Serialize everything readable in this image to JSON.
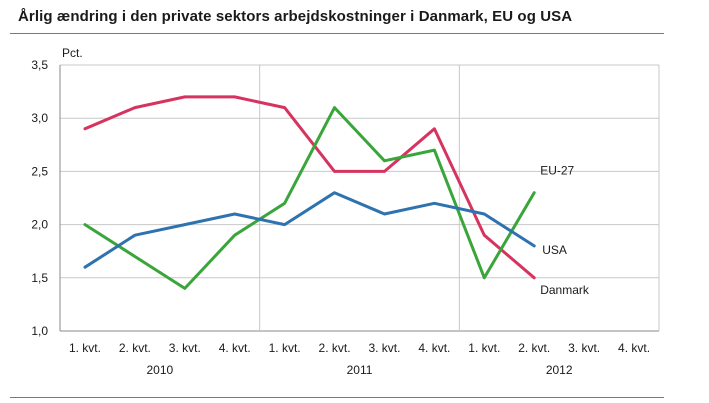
{
  "title": "Årlig ændring i den private sektors arbejdskostninger i Danmark, EU og USA",
  "colors": {
    "rule": "#3aa53a",
    "grid": "#c8c8c8",
    "axis": "#8a8a8a"
  },
  "chart_data": {
    "type": "line",
    "ylabel": "Pct.",
    "ylim": [
      1.0,
      3.5
    ],
    "yticks": [
      1.0,
      1.5,
      2.0,
      2.5,
      3.0,
      3.5
    ],
    "ytick_labels": [
      "1,0",
      "1,5",
      "2,0",
      "2,5",
      "3,0",
      "3,5"
    ],
    "categories": [
      "1. kvt.",
      "2. kvt.",
      "3. kvt.",
      "4. kvt.",
      "1. kvt.",
      "2. kvt.",
      "3. kvt.",
      "4. kvt.",
      "1. kvt.",
      "2. kvt.",
      "3. kvt.",
      "4. kvt."
    ],
    "years": [
      "2010",
      "2011",
      "2012"
    ],
    "grid": true,
    "series": [
      {
        "name": "Danmark",
        "color": "#d6335f",
        "values": [
          2.9,
          3.1,
          3.2,
          3.2,
          3.1,
          2.5,
          2.5,
          2.9,
          1.9,
          1.5,
          null,
          null
        ]
      },
      {
        "name": "EU-27",
        "color": "#3aa53a",
        "values": [
          2.0,
          1.7,
          1.4,
          1.9,
          2.2,
          3.1,
          2.6,
          2.7,
          1.5,
          2.3,
          null,
          null
        ]
      },
      {
        "name": "USA",
        "color": "#2e72b0",
        "values": [
          1.6,
          1.9,
          2.0,
          2.1,
          2.0,
          2.3,
          2.1,
          2.2,
          2.1,
          1.8,
          null,
          null
        ]
      }
    ]
  }
}
